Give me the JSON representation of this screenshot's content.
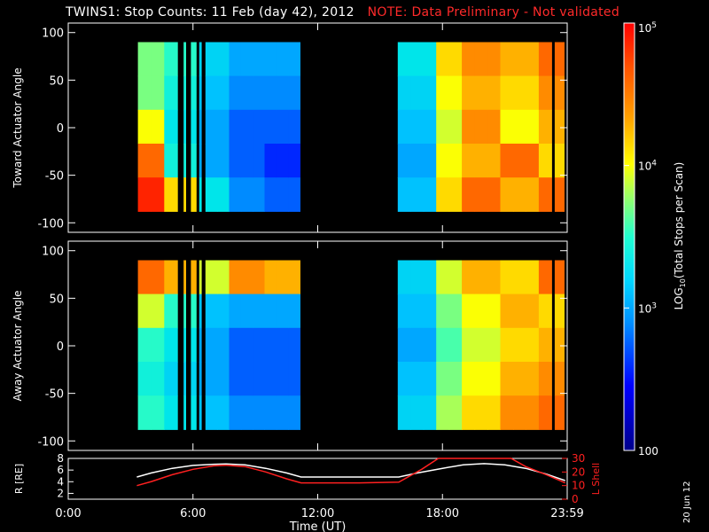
{
  "header": {
    "title": "TWINS1: Stop Counts: 11 Feb (day  42), 2012",
    "warning": "NOTE: Data Preliminary - Not validated"
  },
  "stamp": "20 Jun 12",
  "colors": {
    "background": "#000000",
    "axes": "#ffffff",
    "warning": "#ff2a2a",
    "r_trace": "#ffffff",
    "lshell_trace": "#ff2020",
    "colormap": [
      "#00008b",
      "#0000ff",
      "#0080ff",
      "#00c0ff",
      "#00e8e8",
      "#30ffc0",
      "#a0ff60",
      "#ffff00",
      "#ffa000",
      "#ff5000",
      "#ff0000"
    ]
  },
  "chart_data": [
    {
      "type": "heatmap",
      "panel": "top",
      "ylabel": "Toward Actuator Angle",
      "ylim": [
        -110,
        110
      ],
      "yticks": [
        100,
        50,
        0,
        -50,
        -100
      ],
      "xlim": [
        0,
        24
      ],
      "data_y_range": [
        -88,
        90
      ],
      "data_blocks_hours": [
        [
          3.35,
          5.25
        ],
        [
          5.55,
          5.65
        ],
        [
          5.9,
          6.15
        ],
        [
          6.3,
          6.4
        ],
        [
          6.6,
          11.15
        ],
        [
          15.85,
          23.25
        ],
        [
          23.4,
          23.85
        ]
      ],
      "color_levels_log10": [
        [
          3.9,
          3.7,
          3.4,
          3.2,
          3.2,
          3.3,
          3.4,
          3.4,
          3.5,
          4.3,
          4.5,
          4.4,
          4.6
        ],
        [
          3.9,
          3.6,
          3.3,
          3.1,
          3.1,
          3.2,
          3.3,
          3.4,
          3.4,
          4.2,
          4.4,
          4.3,
          4.5
        ],
        [
          4.2,
          3.5,
          3.2,
          3.0,
          3.0,
          3.1,
          3.2,
          3.2,
          3.3,
          4.1,
          4.5,
          4.2,
          4.4
        ],
        [
          4.6,
          3.6,
          3.2,
          3.0,
          2.9,
          3.0,
          3.1,
          3.1,
          3.2,
          4.2,
          4.4,
          4.6,
          4.3
        ],
        [
          4.8,
          4.3,
          3.5,
          3.1,
          3.0,
          3.1,
          3.2,
          3.2,
          3.3,
          4.3,
          4.6,
          4.4,
          4.6
        ]
      ]
    },
    {
      "type": "heatmap",
      "panel": "middle",
      "ylabel": "Away Actuator Angle",
      "ylim": [
        -110,
        110
      ],
      "yticks": [
        100,
        50,
        0,
        -50,
        -100
      ],
      "xlim": [
        0,
        24
      ],
      "data_y_range": [
        -88,
        90
      ],
      "data_blocks_hours": [
        [
          3.35,
          5.25
        ],
        [
          5.55,
          5.65
        ],
        [
          5.9,
          6.15
        ],
        [
          6.3,
          6.4
        ],
        [
          6.6,
          11.15
        ],
        [
          15.85,
          23.25
        ],
        [
          23.4,
          23.85
        ]
      ],
      "color_levels_log10": [
        [
          4.6,
          4.4,
          4.1,
          4.5,
          4.4,
          4.3,
          4.2,
          4.4,
          3.4,
          4.1,
          4.4,
          4.3,
          4.6
        ],
        [
          4.1,
          3.7,
          3.3,
          3.2,
          3.2,
          3.3,
          3.4,
          4.1,
          3.3,
          3.9,
          4.2,
          4.4,
          4.3
        ],
        [
          3.7,
          3.5,
          3.2,
          3.0,
          3.0,
          3.1,
          3.2,
          4.1,
          3.2,
          3.8,
          4.1,
          4.3,
          4.4
        ],
        [
          3.6,
          3.4,
          3.2,
          3.0,
          3.0,
          3.1,
          3.2,
          4.2,
          3.3,
          3.9,
          4.2,
          4.4,
          4.5
        ],
        [
          3.7,
          3.5,
          3.3,
          3.1,
          3.1,
          3.2,
          3.3,
          4.2,
          3.4,
          4.0,
          4.3,
          4.5,
          4.6
        ]
      ]
    },
    {
      "type": "line",
      "panel": "bottom",
      "xlabel": "Time (UT)",
      "xlim": [
        0,
        24
      ],
      "xticks": [
        "0:00",
        "6:00",
        "12:00",
        "18:00",
        "23:59"
      ],
      "ylabel_left": "R [RE]",
      "ylim_left": [
        1,
        8
      ],
      "yticks_left": [
        2,
        4,
        6,
        8
      ],
      "ylabel_right": "L Shell",
      "ylim_right": [
        0,
        30
      ],
      "yticks_right": [
        0,
        10,
        20,
        30
      ],
      "series": [
        {
          "name": "R [RE]",
          "axis": "left",
          "x": [
            3.3,
            4.0,
            5.0,
            6.0,
            7.0,
            7.6,
            8.5,
            9.5,
            10.5,
            11.2,
            12.5,
            14.0,
            15.9,
            16.8,
            18.0,
            19.0,
            20.0,
            21.0,
            22.0,
            23.0,
            23.9
          ],
          "y": [
            4.8,
            5.5,
            6.3,
            6.8,
            7.0,
            7.05,
            6.9,
            6.3,
            5.5,
            4.8,
            4.8,
            4.8,
            4.8,
            5.5,
            6.3,
            6.9,
            7.1,
            6.9,
            6.3,
            5.3,
            4.2
          ]
        },
        {
          "name": "L Shell",
          "axis": "right",
          "x": [
            3.3,
            4.0,
            5.0,
            6.0,
            7.0,
            7.6,
            8.5,
            9.5,
            10.5,
            11.2,
            12.5,
            14.0,
            15.9,
            17.0,
            17.8,
            21.3,
            22.0,
            23.0,
            23.9
          ],
          "y": [
            10,
            13,
            18,
            22,
            24.5,
            25,
            24,
            20,
            15,
            12,
            12,
            12,
            12.5,
            22,
            31,
            31,
            24,
            18,
            12
          ]
        }
      ]
    }
  ],
  "colorbar": {
    "label": "LOG10(Total Stops per Scan)",
    "range_log10": [
      2,
      5
    ],
    "tick_labels": [
      "10",
      "10",
      "10",
      "100"
    ],
    "tick_exponents": [
      "5",
      "4",
      "3",
      ""
    ]
  }
}
